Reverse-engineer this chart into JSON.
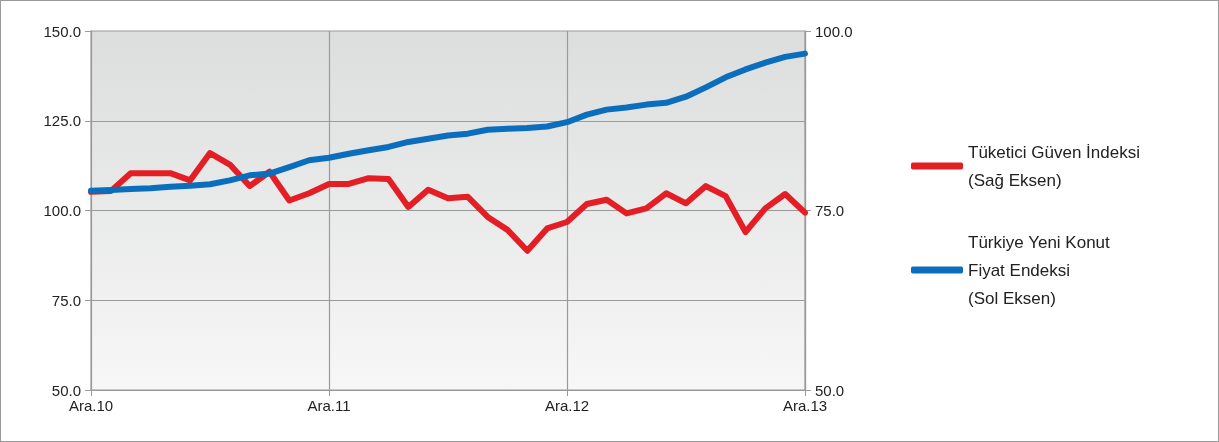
{
  "chart_data": {
    "type": "line",
    "categories": [
      "Ara.10",
      null,
      null,
      null,
      null,
      null,
      null,
      null,
      null,
      null,
      null,
      null,
      "Ara.11",
      null,
      null,
      null,
      null,
      null,
      null,
      null,
      null,
      null,
      null,
      null,
      "Ara.12",
      null,
      null,
      null,
      null,
      null,
      null,
      null,
      null,
      null,
      null,
      null,
      "Ara.13"
    ],
    "series": [
      {
        "name": "Tüketici Güven İndeksi\n(Sağ Eksen)",
        "color": "#e31e25",
        "axis": "y2",
        "values": [
          77.6,
          77.7,
          80.2,
          80.2,
          80.2,
          79.2,
          83.0,
          81.4,
          78.4,
          80.4,
          76.4,
          77.4,
          78.7,
          78.7,
          79.5,
          79.4,
          75.5,
          77.9,
          76.7,
          76.9,
          74.1,
          72.3,
          69.4,
          72.5,
          73.4,
          75.9,
          76.5,
          74.6,
          75.3,
          77.4,
          76.0,
          78.4,
          77.0,
          72.0,
          75.3,
          77.3,
          74.7
        ]
      },
      {
        "name": "Türkiye Yeni Konut\nFiyat Endeksi\n(Sol Eksen)",
        "color": "#0a6ebd",
        "values": [
          105.5,
          105.7,
          106.0,
          106.2,
          106.6,
          106.9,
          107.3,
          108.4,
          109.8,
          110.3,
          112.1,
          114.0,
          114.7,
          115.8,
          116.8,
          117.7,
          119.1,
          120.0,
          120.9,
          121.4,
          122.5,
          122.8,
          123.0,
          123.4,
          124.6,
          126.7,
          128.1,
          128.7,
          129.5,
          130.0,
          131.7,
          134.3,
          137.1,
          139.3,
          141.2,
          142.8,
          143.7
        ]
      }
    ],
    "ylim": [
      50,
      150
    ],
    "yticks": [
      {
        "value": 50,
        "label": "50.0"
      },
      {
        "value": 75,
        "label": "75.0"
      },
      {
        "value": 100,
        "label": "100.0"
      },
      {
        "value": 125,
        "label": "125.0"
      },
      {
        "value": 150,
        "label": "150.0"
      }
    ],
    "y2lim": [
      50,
      100
    ],
    "y2ticks": [
      {
        "value": 50,
        "label": "50.0"
      },
      {
        "value": 75,
        "label": "75.0"
      },
      {
        "value": 100,
        "label": "100.0"
      }
    ],
    "grid": true,
    "legend": "right",
    "marker": "none",
    "line_style": "solid"
  }
}
